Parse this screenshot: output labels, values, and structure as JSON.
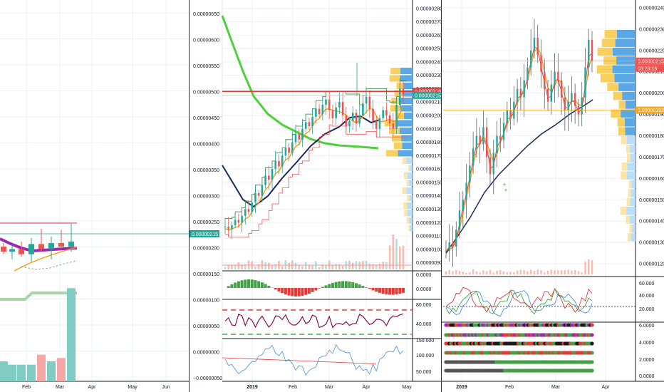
{
  "chart_data": [
    {
      "type": "candlestick",
      "panel": "left",
      "x_labels": [
        "Feb",
        "Mar",
        "Apr",
        "May",
        "Jun"
      ],
      "price_axis": [
        "0.00000650",
        "0.00000600",
        "0.00000550",
        "0.00000500",
        "0.00000450",
        "0.00000400",
        "0.00000350",
        "0.00000300",
        "0.00000250",
        "0.00000200",
        "0.00000150",
        "0.00000100",
        "0.00000050",
        "0.00000000",
        "−0.00000050"
      ],
      "last_price": "0.00000215",
      "ylim": [
        -6e-07,
        6.9e-06
      ],
      "candles": [
        {
          "o": 2.05e-06,
          "h": 2.12e-06,
          "l": 1.9e-06,
          "c": 1.95e-06
        },
        {
          "o": 1.95e-06,
          "h": 2.1e-06,
          "l": 1.8e-06,
          "c": 2e-06
        },
        {
          "o": 2e-06,
          "h": 2.15e-06,
          "l": 1.85e-06,
          "c": 1.9e-06
        },
        {
          "o": 1.9e-06,
          "h": 2.22e-06,
          "l": 1.75e-06,
          "c": 2.1e-06
        },
        {
          "o": 2.1e-06,
          "h": 2.4e-06,
          "l": 1.95e-06,
          "c": 2e-06
        },
        {
          "o": 2e-06,
          "h": 2.25e-06,
          "l": 1.8e-06,
          "c": 2.12e-06
        },
        {
          "o": 2.12e-06,
          "h": 2.38e-06,
          "l": 2e-06,
          "c": 2.05e-06
        },
        {
          "o": 2.05e-06,
          "h": 2.5e-06,
          "l": 1.95e-06,
          "c": 2.15e-06
        }
      ],
      "volume": [
        6,
        5,
        5,
        5,
        8,
        6,
        7,
        28
      ],
      "volume_max": 30
    },
    {
      "type": "candlestick",
      "panel": "middle",
      "x_labels": [
        "2019",
        "Feb",
        "Mar",
        "Apr",
        "May"
      ],
      "price_axis": [
        "0.00000280",
        "0.00000270",
        "0.00000260",
        "0.00000250",
        "0.00000240",
        "0.00000230",
        "0.00000220",
        "0.00000210",
        "0.00000200",
        "0.00000190",
        "0.00000180",
        "0.00000170",
        "0.00000160",
        "0.00000150",
        "0.00000140",
        "0.00000130",
        "0.00000120",
        "0.00000110",
        "0.00000100",
        "0.00000090"
      ],
      "price_tags": [
        "0.00000218",
        "0.00000215"
      ],
      "ylim": [
        8.5e-07,
        2.82e-06
      ],
      "close_series": [
        1.17,
        1.15,
        1.18,
        1.22,
        1.2,
        1.25,
        1.3,
        1.28,
        1.35,
        1.42,
        1.4,
        1.48,
        1.55,
        1.52,
        1.6,
        1.66,
        1.62,
        1.7,
        1.76,
        1.72,
        1.8,
        1.86,
        1.82,
        1.9,
        1.95,
        1.92,
        1.99,
        2.05,
        2.01,
        2.08,
        2.12,
        2.04,
        1.98,
        2.06,
        2.1,
        2.0,
        1.92,
        1.96,
        2.02,
        1.94,
        2.0,
        2.09,
        2.14,
        2.05,
        1.96,
        1.9,
        1.98,
        2.04,
        2.0,
        1.94,
        1.9,
        2.08,
        2.2,
        2.15
      ],
      "oscillators": {
        "macd_axis": [
          "0.0000",
          "0.0000"
        ],
        "rsi_axis": [
          "80.000",
          "40.000"
        ],
        "cci_axis": [
          "150.000",
          "100.000",
          "50.000"
        ]
      }
    },
    {
      "type": "candlestick",
      "panel": "right",
      "x_labels": [
        "2019",
        "Feb",
        "Mar",
        "Apr"
      ],
      "price_axis": [
        "0.00000240",
        "0.00000230",
        "0.00000220",
        "0.00000210",
        "0.00000200",
        "0.00000190",
        "0.00000180",
        "0.00000170",
        "0.00000160",
        "0.00000150",
        "0.00000140",
        "0.00000130",
        "0.00000120"
      ],
      "price_tags": [
        "0.00000215",
        "03:29:18",
        "0.00000192"
      ],
      "ylim": [
        1.15e-06,
        2.42e-06
      ],
      "close_series": [
        1.26,
        1.3,
        1.28,
        1.36,
        1.45,
        1.5,
        1.58,
        1.66,
        1.74,
        1.8,
        1.76,
        1.84,
        1.7,
        1.62,
        1.72,
        1.8,
        1.78,
        1.86,
        1.92,
        1.88,
        1.96,
        2.02,
        1.98,
        2.06,
        2.12,
        2.2,
        2.26,
        2.18,
        2.1,
        2.02,
        1.96,
        2.04,
        2.1,
        2.06,
        1.98,
        1.92,
        1.96,
        2.0,
        1.94,
        1.9,
        1.98,
        2.12,
        2.25,
        2.15
      ],
      "oscillators": {
        "stoch_axis": [
          "60.000",
          "40.000",
          "20.000"
        ],
        "dots_axis": [
          "6.0000",
          "4.0000",
          "2.0000",
          "0.0000"
        ]
      }
    }
  ]
}
